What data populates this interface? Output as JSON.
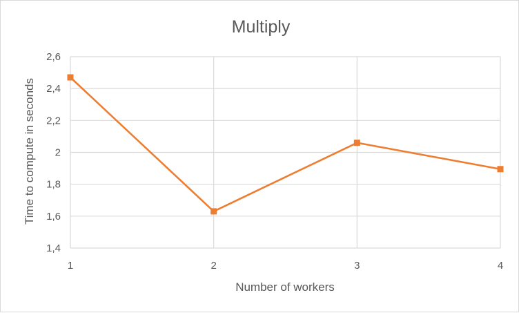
{
  "chart_data": {
    "type": "line",
    "title": "Multiply",
    "xlabel": "Number of workers",
    "ylabel": "Time to compute in seconds",
    "x": [
      1,
      2,
      3,
      4
    ],
    "x_tick_labels": [
      "1",
      "2",
      "3",
      "4"
    ],
    "y_tick_values": [
      1.4,
      1.6,
      1.8,
      2.0,
      2.2,
      2.4,
      2.6
    ],
    "y_tick_labels": [
      "1,4",
      "1,6",
      "1,8",
      "2",
      "2,2",
      "2,4",
      "2,6"
    ],
    "ylim": [
      1.4,
      2.6
    ],
    "xlim": [
      1,
      4
    ],
    "grid": true,
    "legend": "none",
    "series": [
      {
        "values": [
          2.47,
          1.63,
          2.06,
          1.895
        ],
        "color": "#ED7D31",
        "marker": "square"
      }
    ],
    "gridline_color": "#D9D9D9",
    "text_color": "#595959"
  }
}
